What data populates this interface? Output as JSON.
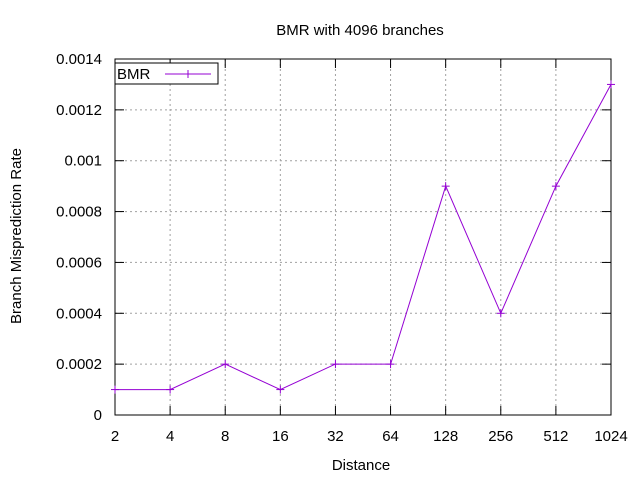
{
  "chart_data": {
    "type": "line",
    "title": "BMR with 4096 branches",
    "xlabel": "Distance",
    "ylabel": "Branch Misprediction Rate",
    "x_scale": "log2",
    "categories": [
      "2",
      "4",
      "8",
      "16",
      "32",
      "64",
      "128",
      "256",
      "512",
      "1024"
    ],
    "x": [
      2,
      4,
      8,
      16,
      32,
      64,
      128,
      256,
      512,
      1024
    ],
    "ylim": [
      0,
      0.0014
    ],
    "y_ticks": [
      "0",
      "0.0002",
      "0.0004",
      "0.0006",
      "0.0008",
      "0.001",
      "0.0012",
      "0.0014"
    ],
    "y_tick_values": [
      0,
      0.0002,
      0.0004,
      0.0006,
      0.0008,
      0.001,
      0.0012,
      0.0014
    ],
    "grid": true,
    "legend_position": "top-left",
    "series": [
      {
        "name": "BMR",
        "color": "#9400d3",
        "marker": "plus",
        "values": [
          0.0001,
          0.0001,
          0.0002,
          0.0001,
          0.0002,
          0.0002,
          0.0009,
          0.0004,
          0.0009,
          0.0013
        ]
      }
    ]
  }
}
